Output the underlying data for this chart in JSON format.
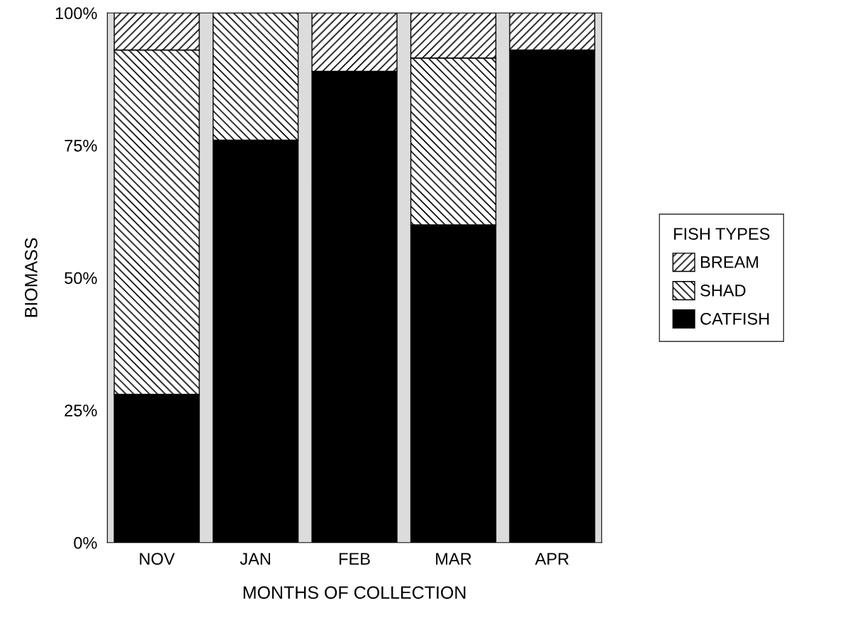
{
  "chart_data": {
    "type": "bar",
    "stacked": true,
    "xlabel": "MONTHS OF COLLECTION",
    "ylabel": "BIOMASS",
    "legend_title": "FISH TYPES",
    "categories": [
      "NOV",
      "JAN",
      "FEB",
      "MAR",
      "APR"
    ],
    "series": [
      {
        "name": "CATFISH",
        "color": "#000000",
        "values": [
          28,
          76,
          89,
          60,
          93
        ]
      },
      {
        "name": "SHAD",
        "color": "#000000",
        "values": [
          65,
          24,
          0,
          31.5,
          0
        ]
      },
      {
        "name": "BREAM",
        "color": "#000000",
        "values": [
          7,
          0,
          11,
          8.5,
          7
        ]
      }
    ],
    "ylim": [
      0,
      100
    ],
    "yticks": [
      {
        "value": 0,
        "label": "0%"
      },
      {
        "value": 25,
        "label": "25%"
      },
      {
        "value": 50,
        "label": "50%"
      },
      {
        "value": 75,
        "label": "75%"
      },
      {
        "value": 100,
        "label": "100%"
      }
    ],
    "grid": false,
    "legend": "right"
  }
}
